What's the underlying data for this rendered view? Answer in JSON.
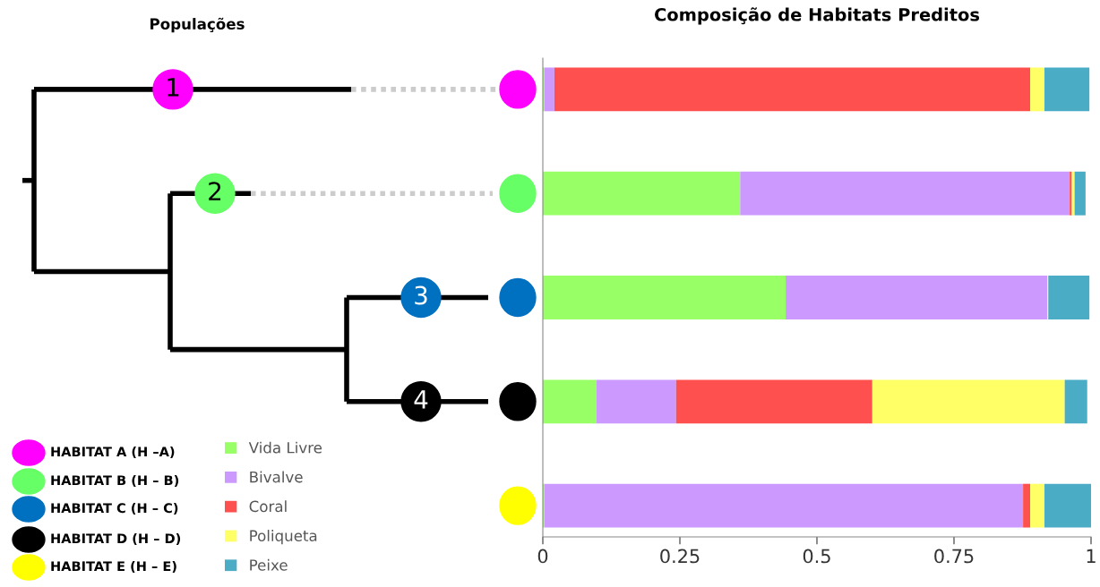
{
  "chart_data": {
    "type": "bar",
    "orientation": "horizontal",
    "stacked": true,
    "title": "Composição de Habitats Preditos",
    "categories": [
      null,
      null,
      null,
      null,
      null
    ],
    "series": [
      {
        "name": "Vida Livre",
        "color": "#99ff66",
        "values": [
          0.003,
          0.36,
          0.443,
          0.098,
          0.003
        ]
      },
      {
        "name": "Bivalve",
        "color": "#cc99ff",
        "values": [
          0.018,
          0.601,
          0.477,
          0.145,
          0.873
        ]
      },
      {
        "name": "Coral",
        "color": "#ff5050",
        "values": [
          0.868,
          0.004,
          null,
          0.358,
          0.013
        ]
      },
      {
        "name": "Poliqueta",
        "color": "#ffff66",
        "values": [
          0.026,
          0.005,
          0.002,
          0.351,
          0.026
        ]
      },
      {
        "name": "Peixe",
        "color": "#4bacc6",
        "values": [
          0.082,
          0.02,
          0.075,
          0.041,
          0.085
        ]
      }
    ],
    "xlim": [
      0,
      1
    ],
    "xticks": [
      0,
      0.25,
      0.5,
      0.75,
      1
    ],
    "legend": "bottom left",
    "grid": false,
    "annotations": [
      "Populações",
      "1",
      "2",
      "3",
      "4",
      "HABITAT A (H –A)",
      "HABITAT B (H – B)",
      "HABITAT C (H – C)",
      "HABITAT D (H – D)",
      "HABITAT E (H – E)"
    ]
  }
}
